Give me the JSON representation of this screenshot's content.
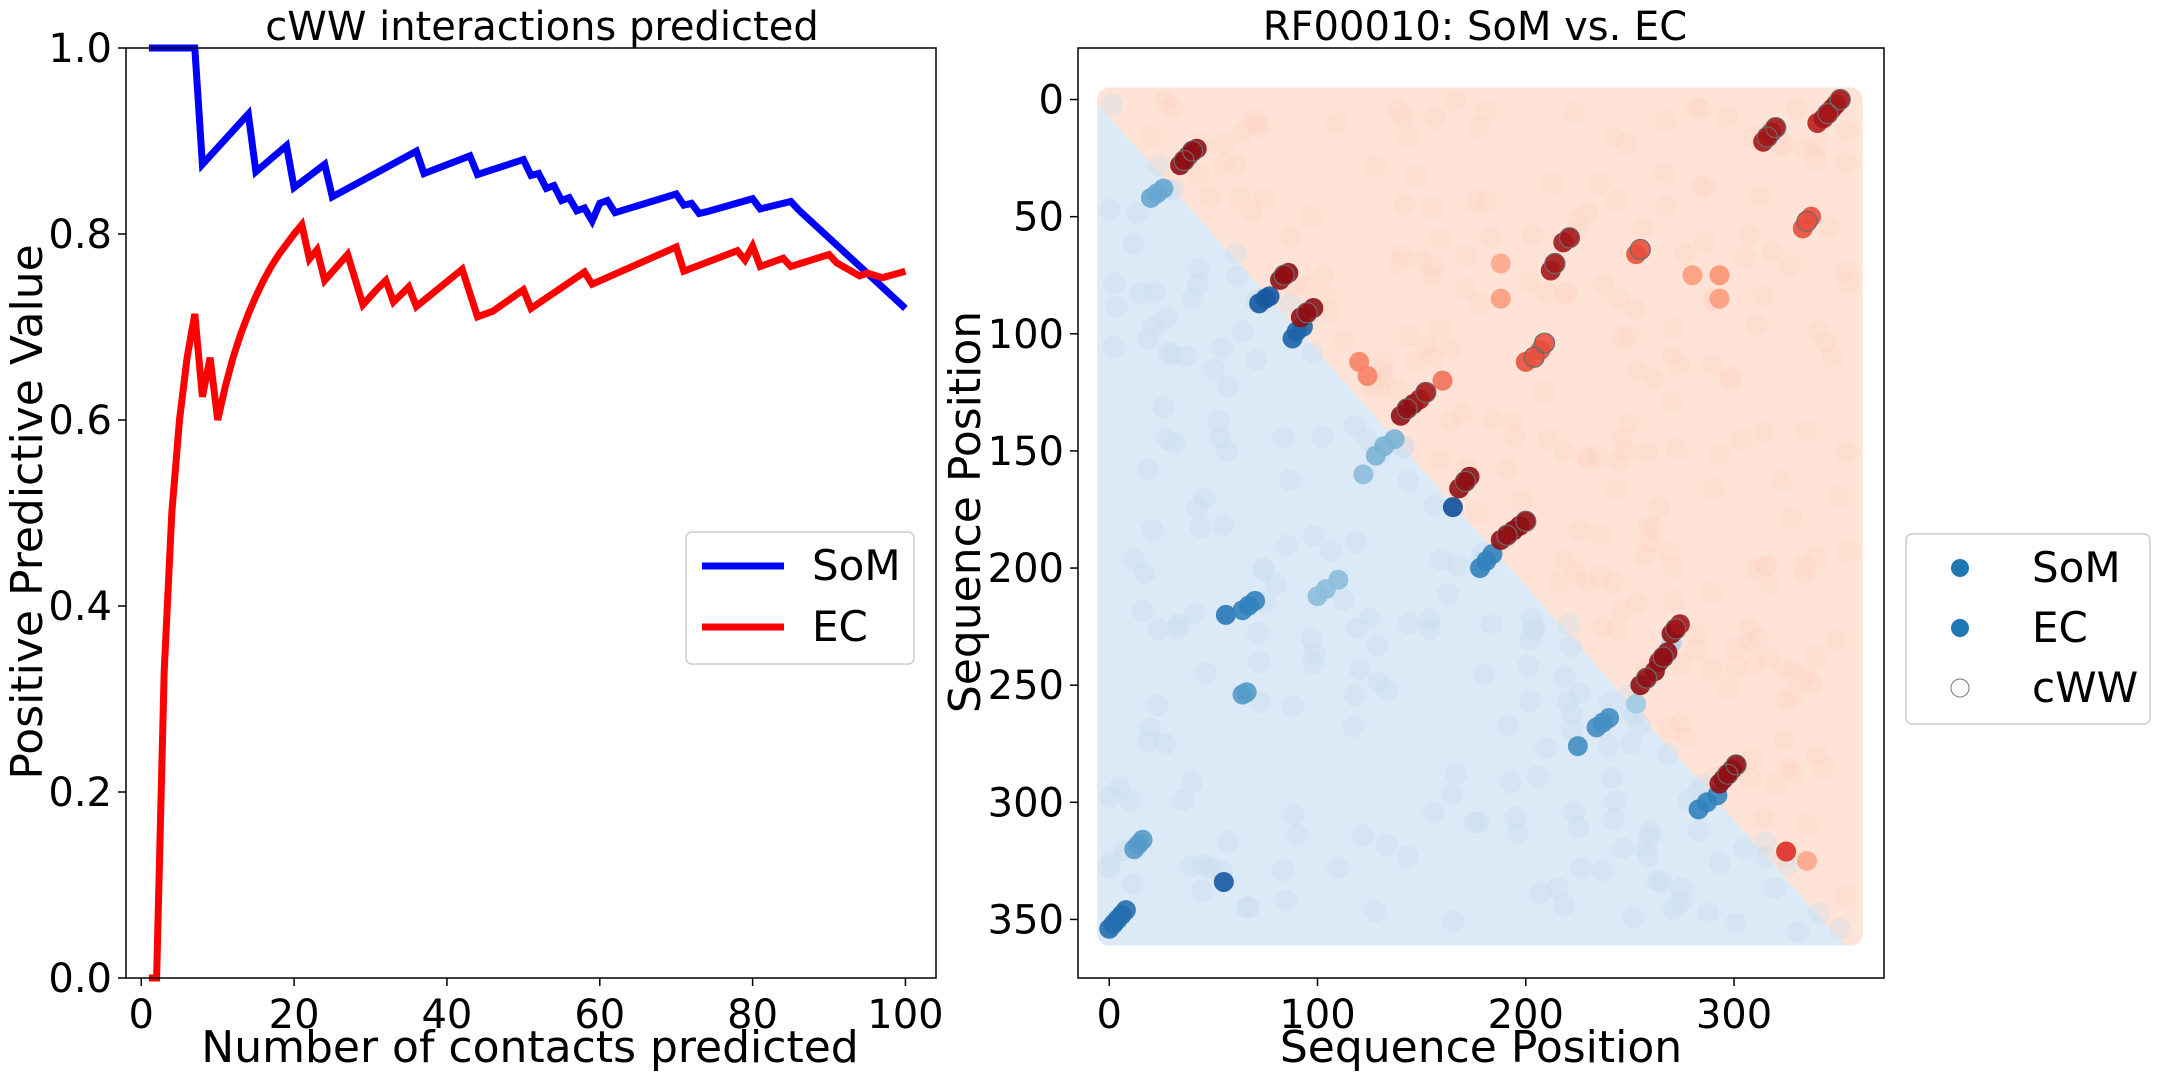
{
  "chart_data": [
    {
      "type": "line",
      "title": "cWW interactions predicted",
      "xlabel": "Number of contacts predicted",
      "ylabel": "Positive Predictive Value",
      "xlim": [
        -2,
        104
      ],
      "ylim": [
        0,
        1.0
      ],
      "xticks": [
        0,
        20,
        40,
        60,
        80,
        100
      ],
      "yticks": [
        0.0,
        0.2,
        0.4,
        0.6,
        0.8,
        1.0
      ],
      "xtick_labels": [
        "0",
        "20",
        "40",
        "60",
        "80",
        "100"
      ],
      "ytick_labels": [
        "0.0",
        "0.2",
        "0.4",
        "0.6",
        "0.8",
        "1.0"
      ],
      "legend_position": "center-right",
      "series": [
        {
          "name": "SoM",
          "color": "#0000ff",
          "x": [
            1,
            7,
            8,
            14,
            15,
            19,
            20,
            24,
            25,
            36,
            37,
            43,
            44,
            50,
            51,
            52,
            53,
            54,
            55,
            56,
            57,
            58,
            59,
            60,
            61,
            62,
            70,
            71,
            72,
            73,
            74,
            80,
            81,
            82,
            85,
            86,
            100
          ],
          "y": [
            1.0,
            1.0,
            0.875,
            0.929,
            0.867,
            0.895,
            0.85,
            0.875,
            0.84,
            0.889,
            0.865,
            0.884,
            0.864,
            0.88,
            0.863,
            0.865,
            0.849,
            0.852,
            0.836,
            0.839,
            0.825,
            0.828,
            0.814,
            0.833,
            0.836,
            0.823,
            0.843,
            0.831,
            0.833,
            0.822,
            0.824,
            0.838,
            0.827,
            0.829,
            0.835,
            0.826,
            0.72
          ]
        },
        {
          "name": "EC",
          "color": "#ff0000",
          "x": [
            1,
            2,
            3,
            4,
            5,
            6,
            7,
            8,
            9,
            10,
            11,
            12,
            13,
            14,
            15,
            16,
            17,
            18,
            19,
            20,
            21,
            22,
            23,
            24,
            27,
            29,
            31,
            32,
            33,
            34,
            35,
            36,
            42,
            44,
            46,
            50,
            51,
            58,
            59,
            70,
            71,
            78,
            79,
            80,
            81,
            84,
            85,
            90,
            91,
            94,
            95,
            97,
            100
          ],
          "y": [
            0.0,
            0.0,
            0.33,
            0.5,
            0.6,
            0.667,
            0.714,
            0.625,
            0.667,
            0.6,
            0.636,
            0.667,
            0.692,
            0.714,
            0.733,
            0.75,
            0.765,
            0.778,
            0.789,
            0.8,
            0.81,
            0.773,
            0.783,
            0.75,
            0.778,
            0.724,
            0.742,
            0.75,
            0.727,
            0.735,
            0.743,
            0.722,
            0.762,
            0.711,
            0.717,
            0.74,
            0.72,
            0.759,
            0.746,
            0.786,
            0.76,
            0.782,
            0.772,
            0.787,
            0.765,
            0.774,
            0.765,
            0.778,
            0.769,
            0.755,
            0.758,
            0.753,
            0.76
          ]
        }
      ]
    },
    {
      "type": "scatter",
      "title": "RF00010: SoM vs. EC",
      "xlabel": "Sequence Position",
      "ylabel": "Sequence Position",
      "xlim": [
        -15,
        372
      ],
      "ylim": [
        375,
        -22
      ],
      "xticks": [
        0,
        100,
        200,
        300
      ],
      "yticks": [
        0,
        50,
        100,
        150,
        200,
        250,
        300,
        350
      ],
      "xtick_labels": [
        "0",
        "100",
        "200",
        "300"
      ],
      "ytick_labels": [
        "0",
        "50",
        "100",
        "150",
        "200",
        "250",
        "300",
        "350"
      ],
      "n_positions": 356,
      "background_lower_color": "#dce9f6",
      "background_upper_color": "#fee3d6",
      "legend_position": "right-outside",
      "legend": [
        {
          "label": "SoM",
          "marker": "filled-circle",
          "color": "#1f77b4"
        },
        {
          "label": "EC",
          "marker": "filled-circle",
          "color": "#1f77b4"
        },
        {
          "label": "cWW",
          "marker": "open-circle",
          "color": "#888888"
        }
      ],
      "series": [
        {
          "name": "SoM",
          "colormap": "Blues",
          "points": [
            [
              0,
              354,
              0.8
            ],
            [
              2,
              352,
              0.8
            ],
            [
              4,
              350,
              0.8
            ],
            [
              6,
              348,
              0.8
            ],
            [
              8,
              346,
              0.8
            ],
            [
              12,
              320,
              0.6
            ],
            [
              14,
              318,
              0.6
            ],
            [
              16,
              316,
              0.6
            ],
            [
              55,
              334,
              0.9
            ],
            [
              20,
              42,
              0.55
            ],
            [
              23,
              40,
              0.55
            ],
            [
              26,
              38,
              0.55
            ],
            [
              56,
              220,
              0.75
            ],
            [
              64,
              218,
              0.7
            ],
            [
              67,
              216,
              0.7
            ],
            [
              70,
              214,
              0.7
            ],
            [
              64,
              254,
              0.6
            ],
            [
              66,
              253,
              0.6
            ],
            [
              72,
              87,
              0.9
            ],
            [
              75,
              85,
              0.9
            ],
            [
              77,
              84,
              0.9
            ],
            [
              88,
              102,
              0.85
            ],
            [
              90,
              99,
              0.85
            ],
            [
              93,
              97,
              0.85
            ],
            [
              100,
              212,
              0.45
            ],
            [
              104,
              209,
              0.45
            ],
            [
              110,
              205,
              0.45
            ],
            [
              122,
              160,
              0.45
            ],
            [
              128,
              152,
              0.5
            ],
            [
              132,
              148,
              0.5
            ],
            [
              137,
              145,
              0.5
            ],
            [
              165,
              174,
              0.95
            ],
            [
              178,
              200,
              0.7
            ],
            [
              181,
              197,
              0.7
            ],
            [
              184,
              194,
              0.7
            ],
            [
              225,
              276,
              0.65
            ],
            [
              234,
              268,
              0.65
            ],
            [
              237,
              266,
              0.65
            ],
            [
              240,
              264,
              0.65
            ],
            [
              253,
              258,
              0.4
            ],
            [
              270,
              232,
              0.3
            ],
            [
              283,
              303,
              0.7
            ],
            [
              287,
              300,
              0.7
            ],
            [
              292,
              297,
              0.7
            ]
          ]
        },
        {
          "name": "EC",
          "colormap": "Reds",
          "points": [
            [
              34,
              28,
              0.9
            ],
            [
              36,
              26,
              0.9
            ],
            [
              38,
              24,
              0.9
            ],
            [
              40,
              22,
              0.9
            ],
            [
              42,
              21,
              0.9
            ],
            [
              82,
              77,
              0.9
            ],
            [
              84,
              75,
              0.9
            ],
            [
              86,
              74,
              0.9
            ],
            [
              92,
              93,
              0.9
            ],
            [
              95,
              91,
              0.9
            ],
            [
              98,
              89,
              0.9
            ],
            [
              120,
              112,
              0.45
            ],
            [
              124,
              118,
              0.45
            ],
            [
              160,
              120,
              0.5
            ],
            [
              140,
              135,
              0.9
            ],
            [
              143,
              132,
              0.9
            ],
            [
              146,
              130,
              0.9
            ],
            [
              149,
              128,
              0.85
            ],
            [
              152,
              125,
              0.85
            ],
            [
              168,
              166,
              0.9
            ],
            [
              171,
              163,
              0.9
            ],
            [
              173,
              161,
              0.9
            ],
            [
              188,
              188,
              0.9
            ],
            [
              191,
              186,
              0.9
            ],
            [
              194,
              184,
              0.9
            ],
            [
              197,
              182,
              0.9
            ],
            [
              200,
              180,
              0.9
            ],
            [
              200,
              112,
              0.6
            ],
            [
              204,
              110,
              0.6
            ],
            [
              207,
              107,
              0.6
            ],
            [
              209,
              104,
              0.6
            ],
            [
              212,
              73,
              0.85
            ],
            [
              214,
              70,
              0.85
            ],
            [
              218,
              61,
              0.85
            ],
            [
              221,
              59,
              0.85
            ],
            [
              253,
              66,
              0.6
            ],
            [
              255,
              64,
              0.6
            ],
            [
              255,
              250,
              0.9
            ],
            [
              258,
              247,
              0.9
            ],
            [
              262,
              244,
              0.9
            ],
            [
              264,
              240,
              0.9
            ],
            [
              266,
              238,
              0.9
            ],
            [
              268,
              236,
              0.9
            ],
            [
              270,
              228,
              0.9
            ],
            [
              272,
              226,
              0.9
            ],
            [
              274,
              224,
              0.85
            ],
            [
              293,
              292,
              0.9
            ],
            [
              295,
              290,
              0.9
            ],
            [
              297,
              288,
              0.9
            ],
            [
              299,
              286,
              0.9
            ],
            [
              301,
              284,
              0.9
            ],
            [
              314,
              18,
              0.85
            ],
            [
              316,
              16,
              0.85
            ],
            [
              318,
              14,
              0.85
            ],
            [
              320,
              12,
              0.85
            ],
            [
              333,
              55,
              0.6
            ],
            [
              335,
              52,
              0.6
            ],
            [
              337,
              50,
              0.6
            ],
            [
              340,
              10,
              0.8
            ],
            [
              343,
              8,
              0.85
            ],
            [
              345,
              6,
              0.85
            ],
            [
              347,
              4,
              0.85
            ],
            [
              349,
              2,
              0.85
            ],
            [
              351,
              0,
              0.85
            ],
            [
              325,
              321,
              0.7
            ],
            [
              335,
              325,
              0.3
            ],
            [
              280,
              75,
              0.35
            ],
            [
              293,
              75,
              0.4
            ],
            [
              293,
              85,
              0.35
            ],
            [
              188,
              85,
              0.35
            ],
            [
              188,
              70,
              0.3
            ]
          ]
        },
        {
          "name": "cWW",
          "marker": "open-circle",
          "points": [
            [
              36,
              26
            ],
            [
              40,
              22
            ],
            [
              84,
              75
            ],
            [
              95,
              91
            ],
            [
              143,
              132
            ],
            [
              152,
              125
            ],
            [
              171,
              163
            ],
            [
              191,
              186
            ],
            [
              200,
              180
            ],
            [
              204,
              110
            ],
            [
              209,
              104
            ],
            [
              214,
              70
            ],
            [
              221,
              59
            ],
            [
              255,
              64
            ],
            [
              258,
              247
            ],
            [
              266,
              238
            ],
            [
              272,
              226
            ],
            [
              297,
              288
            ],
            [
              301,
              284
            ],
            [
              316,
              16
            ],
            [
              320,
              12
            ],
            [
              335,
              52
            ],
            [
              345,
              6
            ],
            [
              351,
              0
            ]
          ]
        }
      ]
    }
  ]
}
